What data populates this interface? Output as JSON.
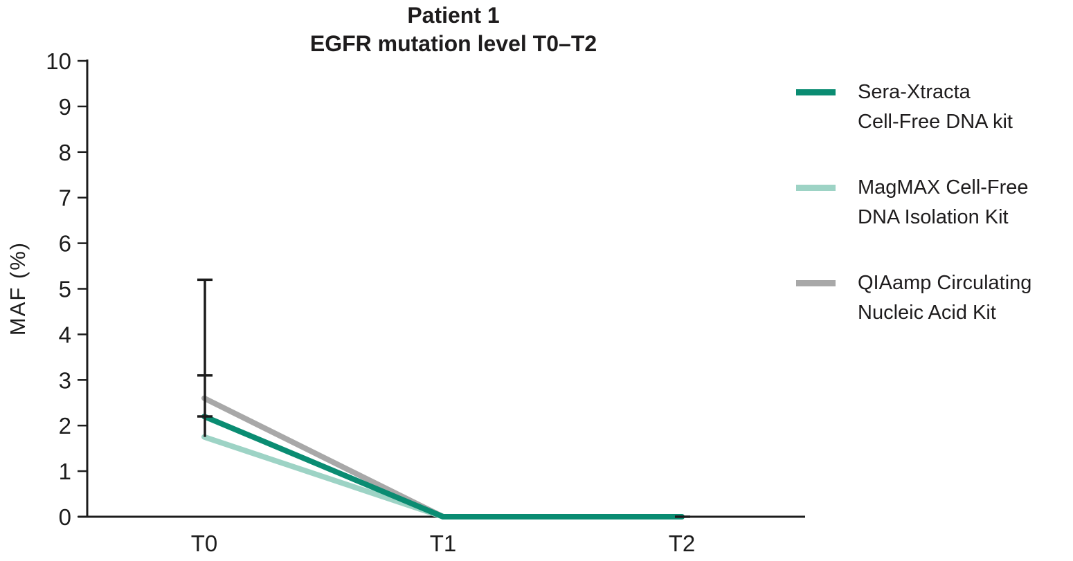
{
  "figure": {
    "title_line1": "Patient 1",
    "title_line2": "EGFR mutation level T0–T2"
  },
  "chart_data": {
    "type": "line",
    "title": "Patient 1 — EGFR mutation level T0–T2",
    "categories": [
      "T0",
      "T1",
      "T2"
    ],
    "series": [
      {
        "name": "Sera-Xtracta Cell-Free DNA kit",
        "values": [
          2.2,
          0,
          0
        ],
        "color": "#0a8c72"
      },
      {
        "name": "MagMAX Cell-Free DNA Isolation Kit",
        "values": [
          1.75,
          0,
          0
        ],
        "color": "#9dd3c5"
      },
      {
        "name": "QIAamp Circulating Nucleic Acid Kit",
        "values": [
          2.6,
          0,
          0
        ],
        "color": "#a8a8a8"
      }
    ],
    "error_bars": [
      {
        "category": "T0",
        "low": 1.75,
        "high": 5.2,
        "caps": [
          5.2,
          3.1,
          2.2
        ]
      },
      {
        "category": "T2",
        "low": 0,
        "high": 0,
        "caps": [
          0
        ]
      }
    ],
    "xlabel": "",
    "ylabel": "MAF (%)",
    "ylim": [
      0,
      10
    ],
    "yticks": [
      0,
      1,
      2,
      3,
      4,
      5,
      6,
      7,
      8,
      9,
      10
    ],
    "grid": false,
    "legend_position": "right"
  },
  "legend": {
    "items": [
      {
        "label": "Sera-Xtracta\nCell-Free DNA kit",
        "color": "#0a8c72"
      },
      {
        "label": "MagMAX Cell-Free\nDNA Isolation Kit",
        "color": "#9dd3c5"
      },
      {
        "label": "QIAamp Circulating\nNucleic Acid Kit",
        "color": "#a8a8a8"
      }
    ]
  },
  "colors": {
    "axis": "#1c1c1c",
    "text": "#1e1c1d",
    "background": "#ffffff"
  }
}
